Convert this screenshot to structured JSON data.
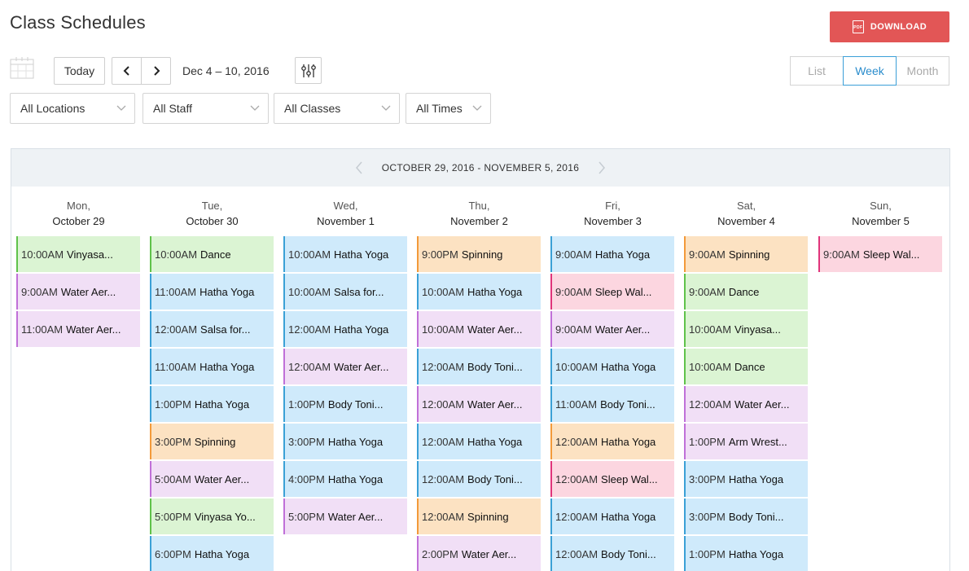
{
  "page": {
    "title": "Class Schedules",
    "download_label": "DOWNLOAD",
    "download_icon": "pdf-icon"
  },
  "toolbar": {
    "today_label": "Today",
    "date_range": "Dec 4 – 10, 2016",
    "views": [
      {
        "label": "List",
        "active": false
      },
      {
        "label": "Week",
        "active": true
      },
      {
        "label": "Month",
        "active": false
      }
    ]
  },
  "filters": [
    {
      "label": "All Locations"
    },
    {
      "label": "All Staff"
    },
    {
      "label": "All Classes"
    },
    {
      "label": "All Times"
    }
  ],
  "schedule": {
    "range_label": "OCTOBER 29, 2016 - NOVEMBER 5, 2016",
    "colors": {
      "blue": {
        "bg": "#cfeafb",
        "bar": "#3aa0d6"
      },
      "green": {
        "bg": "#dbf4d3",
        "bar": "#5fc24a"
      },
      "lilac": {
        "bg": "#f1dff6",
        "bar": "#c070d8"
      },
      "orange": {
        "bg": "#fce2c2",
        "bar": "#f39a3a"
      },
      "pink": {
        "bg": "#fcd6e0",
        "bar": "#e0347a"
      }
    },
    "days": [
      {
        "dow": "Mon,",
        "date": "October 29",
        "classes": [
          {
            "time": "10:00AM",
            "name": "Vinyasa...",
            "color": "green"
          },
          {
            "time": "9:00AM",
            "name": "Water Aer...",
            "color": "lilac"
          },
          {
            "time": "11:00AM",
            "name": "Water Aer...",
            "color": "lilac"
          }
        ]
      },
      {
        "dow": "Tue,",
        "date": "October 30",
        "classes": [
          {
            "time": "10:00AM",
            "name": "Dance",
            "color": "green"
          },
          {
            "time": "11:00AM",
            "name": "Hatha Yoga",
            "color": "blue"
          },
          {
            "time": "12:00AM",
            "name": "Salsa for...",
            "color": "blue"
          },
          {
            "time": "11:00AM",
            "name": "Hatha Yoga",
            "color": "blue"
          },
          {
            "time": "1:00PM",
            "name": "Hatha Yoga",
            "color": "blue"
          },
          {
            "time": "3:00PM",
            "name": "Spinning",
            "color": "orange"
          },
          {
            "time": "5:00AM",
            "name": "Water Aer...",
            "color": "lilac"
          },
          {
            "time": "5:00PM",
            "name": "Vinyasa Yo...",
            "color": "green"
          },
          {
            "time": "6:00PM",
            "name": "Hatha Yoga",
            "color": "blue"
          }
        ]
      },
      {
        "dow": "Wed,",
        "date": "November 1",
        "classes": [
          {
            "time": "10:00AM",
            "name": "Hatha Yoga",
            "color": "blue"
          },
          {
            "time": "10:00AM",
            "name": "Salsa for...",
            "color": "blue"
          },
          {
            "time": "12:00AM",
            "name": "Hatha Yoga",
            "color": "blue"
          },
          {
            "time": "12:00AM",
            "name": "Water Aer...",
            "color": "lilac"
          },
          {
            "time": "1:00PM",
            "name": "Body Toni...",
            "color": "blue"
          },
          {
            "time": "3:00PM",
            "name": "Hatha Yoga",
            "color": "blue"
          },
          {
            "time": "4:00PM",
            "name": "Hatha Yoga",
            "color": "blue"
          },
          {
            "time": "5:00PM",
            "name": "Water Aer...",
            "color": "lilac"
          }
        ]
      },
      {
        "dow": "Thu,",
        "date": "November 2",
        "classes": [
          {
            "time": "9:00PM",
            "name": "Spinning",
            "color": "orange"
          },
          {
            "time": "10:00AM",
            "name": "Hatha Yoga",
            "color": "blue"
          },
          {
            "time": "10:00AM",
            "name": "Water Aer...",
            "color": "lilac"
          },
          {
            "time": "12:00AM",
            "name": "Body Toni...",
            "color": "blue"
          },
          {
            "time": "12:00AM",
            "name": "Water Aer...",
            "color": "lilac"
          },
          {
            "time": "12:00AM",
            "name": "Hatha Yoga",
            "color": "blue"
          },
          {
            "time": "12:00AM",
            "name": "Body Toni...",
            "color": "blue"
          },
          {
            "time": "12:00AM",
            "name": "Spinning",
            "color": "orange"
          },
          {
            "time": "2:00PM",
            "name": "Water Aer...",
            "color": "lilac"
          }
        ]
      },
      {
        "dow": "Fri,",
        "date": "November 3",
        "classes": [
          {
            "time": "9:00AM",
            "name": "Hatha Yoga",
            "color": "blue"
          },
          {
            "time": "9:00AM",
            "name": "Sleep Wal...",
            "color": "pink"
          },
          {
            "time": "9:00AM",
            "name": "Water Aer...",
            "color": "lilac"
          },
          {
            "time": "10:00AM",
            "name": "Hatha Yoga",
            "color": "blue"
          },
          {
            "time": "11:00AM",
            "name": "Body Toni...",
            "color": "blue"
          },
          {
            "time": "12:00AM",
            "name": "Hatha Yoga",
            "color": "orange"
          },
          {
            "time": "12:00AM",
            "name": "Sleep Wal...",
            "color": "pink"
          },
          {
            "time": "12:00AM",
            "name": "Hatha Yoga",
            "color": "blue"
          },
          {
            "time": "12:00AM",
            "name": "Body Toni...",
            "color": "blue"
          }
        ]
      },
      {
        "dow": "Sat,",
        "date": "November 4",
        "classes": [
          {
            "time": "9:00AM",
            "name": "Spinning",
            "color": "orange"
          },
          {
            "time": "9:00AM",
            "name": "Dance",
            "color": "green"
          },
          {
            "time": "10:00AM",
            "name": "Vinyasa...",
            "color": "green"
          },
          {
            "time": "10:00AM",
            "name": "Dance",
            "color": "green"
          },
          {
            "time": "12:00AM",
            "name": "Water Aer...",
            "color": "lilac"
          },
          {
            "time": "1:00PM",
            "name": "Arm Wrest...",
            "color": "lilac"
          },
          {
            "time": "3:00PM",
            "name": "Hatha Yoga",
            "color": "blue"
          },
          {
            "time": "3:00PM",
            "name": "Body Toni...",
            "color": "blue"
          },
          {
            "time": "1:00PM",
            "name": "Hatha Yoga",
            "color": "blue"
          }
        ]
      },
      {
        "dow": "Sun,",
        "date": "November 5",
        "classes": [
          {
            "time": "9:00AM",
            "name": "Sleep Wal...",
            "color": "pink"
          }
        ]
      }
    ]
  }
}
